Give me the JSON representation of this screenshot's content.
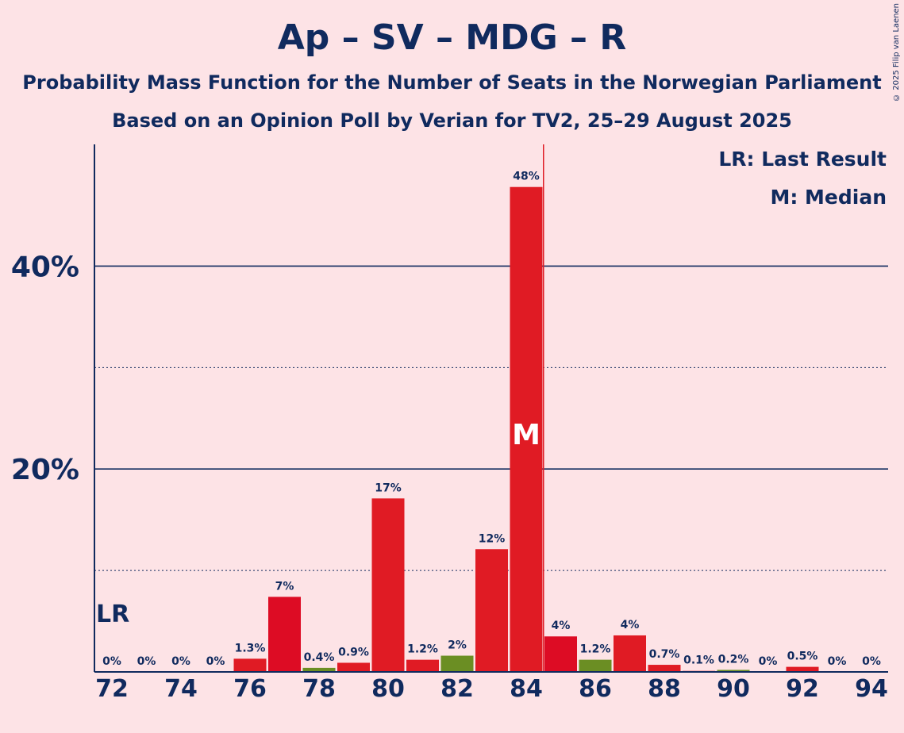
{
  "chart_data": {
    "type": "bar",
    "title": "Ap – SV – MDG – R",
    "subtitle": "Probability Mass Function for the Number of Seats in the Norwegian Parliament",
    "subtitle2": "Based on an Opinion Poll by Verian for TV2, 25–29 August 2025",
    "copyright": "© 2025 Filip van Laenen",
    "legend": {
      "lr": "LR: Last Result",
      "m": "M: Median"
    },
    "markers": {
      "last_result_label": "LR",
      "last_result_seat": 72,
      "median_label": "M",
      "median_seat": 84,
      "majority_line_seat": 84.5
    },
    "xlabel": "",
    "ylabel": "",
    "ylim": [
      0,
      52
    ],
    "y_ticks": [
      {
        "value": 20,
        "label": "20%"
      },
      {
        "value": 40,
        "label": "40%"
      }
    ],
    "y_minor_ticks": [
      10,
      30
    ],
    "x_tick_labels": [
      "72",
      "74",
      "76",
      "78",
      "80",
      "82",
      "84",
      "86",
      "88",
      "90",
      "92",
      "94"
    ],
    "categories": [
      72,
      73,
      74,
      75,
      76,
      77,
      78,
      79,
      80,
      81,
      82,
      83,
      84,
      85,
      86,
      87,
      88,
      89,
      90,
      91,
      92,
      93,
      94
    ],
    "values": [
      0,
      0,
      0,
      0,
      1.3,
      7.4,
      0.4,
      0.9,
      17.1,
      1.2,
      1.6,
      12.1,
      47.8,
      3.5,
      1.2,
      3.6,
      0.7,
      0.1,
      0.2,
      0,
      0.5,
      0,
      0
    ],
    "labels": [
      "0%",
      "0%",
      "0%",
      "0%",
      "1.3%",
      "7%",
      "0.4%",
      "0.9%",
      "17%",
      "1.2%",
      "2%",
      "12%",
      "48%",
      "4%",
      "1.2%",
      "4%",
      "0.7%",
      "0.1%",
      "0.2%",
      "0%",
      "0.5%",
      "0%",
      "0%"
    ],
    "colors": [
      "#e01b24",
      "#e01b24",
      "#e01b24",
      "#e01b24",
      "#e01b24",
      "#dd0c24",
      "#6b8e23",
      "#e01b24",
      "#e01b24",
      "#e01b24",
      "#6b8e23",
      "#e01b24",
      "#e01b24",
      "#dd0c24",
      "#6b8e23",
      "#e01b24",
      "#e01b24",
      "#e01b24",
      "#6b8e23",
      "#e01b24",
      "#e01b24",
      "#e01b24",
      "#e01b24"
    ],
    "grid": true
  },
  "theme": {
    "background": "#fde3e6",
    "text": "#102a5e",
    "majority_line": "#e01b24"
  }
}
